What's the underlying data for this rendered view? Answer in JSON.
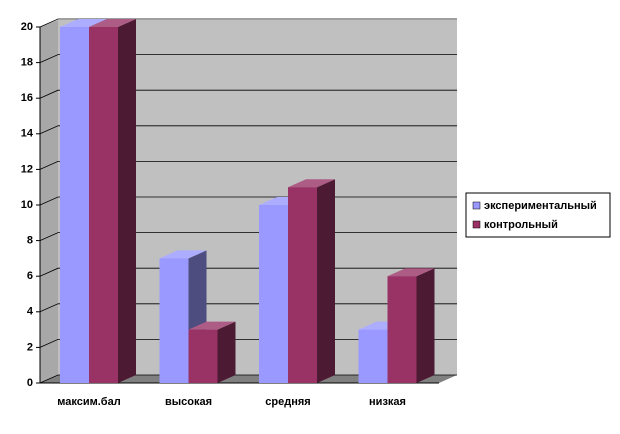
{
  "chart_data": {
    "type": "bar3d",
    "categories": [
      "максим.бал",
      "высокая",
      "средняя",
      "низкая"
    ],
    "series": [
      {
        "name": "экспериментальный",
        "color": "#9999ff",
        "values": [
          20,
          7,
          10,
          3
        ]
      },
      {
        "name": "контрольный",
        "color": "#993366",
        "values": [
          20,
          3,
          11,
          6
        ]
      }
    ],
    "ylim": [
      0,
      20
    ],
    "yticks": [
      0,
      2,
      4,
      6,
      8,
      10,
      12,
      14,
      16,
      18,
      20
    ],
    "grid": true,
    "legend": "right"
  }
}
